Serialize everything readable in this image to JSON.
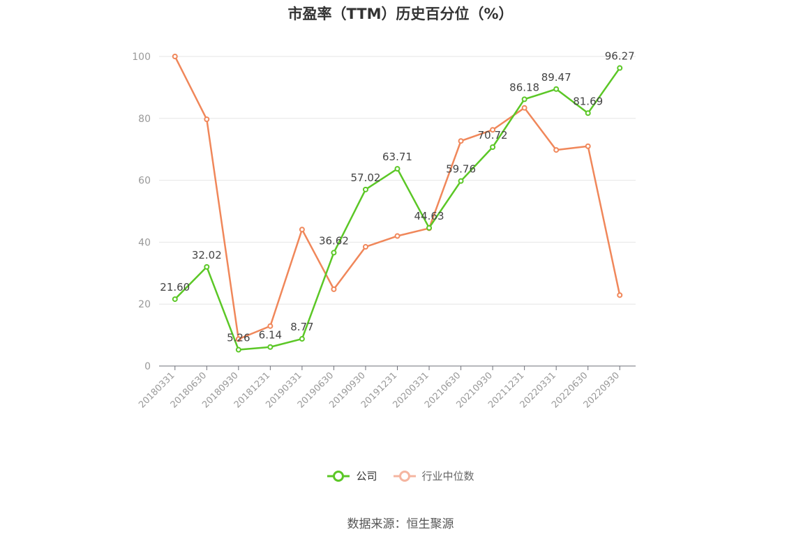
{
  "chart_data": {
    "type": "line",
    "title": "市盈率（TTM）历史百分位（%）",
    "categories": [
      "20180331",
      "20180630",
      "20180930",
      "20181231",
      "20190331",
      "20190630",
      "20190930",
      "20191231",
      "20200331",
      "20210630",
      "20210930",
      "20211231",
      "20220331",
      "20220630",
      "20220930"
    ],
    "series": [
      {
        "name": "公司",
        "color": "#5bc726",
        "values": [
          21.6,
          32.02,
          5.26,
          6.14,
          8.77,
          36.62,
          57.02,
          63.71,
          44.63,
          59.76,
          70.72,
          86.18,
          89.47,
          81.69,
          96.27
        ],
        "data_labels": [
          "21.60",
          "32.02",
          "5.26",
          "6.14",
          "8.77",
          "36.62",
          "57.02",
          "63.71",
          "44.63",
          "59.76",
          "70.72",
          "86.18",
          "89.47",
          "81.69",
          "96.27"
        ]
      },
      {
        "name": "行业中位数",
        "color": "#f0875a",
        "values": [
          100,
          79.7,
          8.7,
          12.9,
          44.1,
          24.8,
          38.5,
          42.0,
          44.5,
          72.7,
          76.3,
          83.4,
          69.8,
          71.0,
          22.9
        ]
      }
    ],
    "yticks": [
      "0",
      "20",
      "40",
      "60",
      "80",
      "100"
    ],
    "ylim": [
      0,
      100
    ],
    "grid": true,
    "legend_position": "bottom",
    "xlabel": "",
    "ylabel": ""
  },
  "source": "数据来源：恒生聚源",
  "colors": {
    "grid": "#e6e6e6",
    "axis": "#6e7079",
    "legend_inactive": "#f5b5a0"
  }
}
